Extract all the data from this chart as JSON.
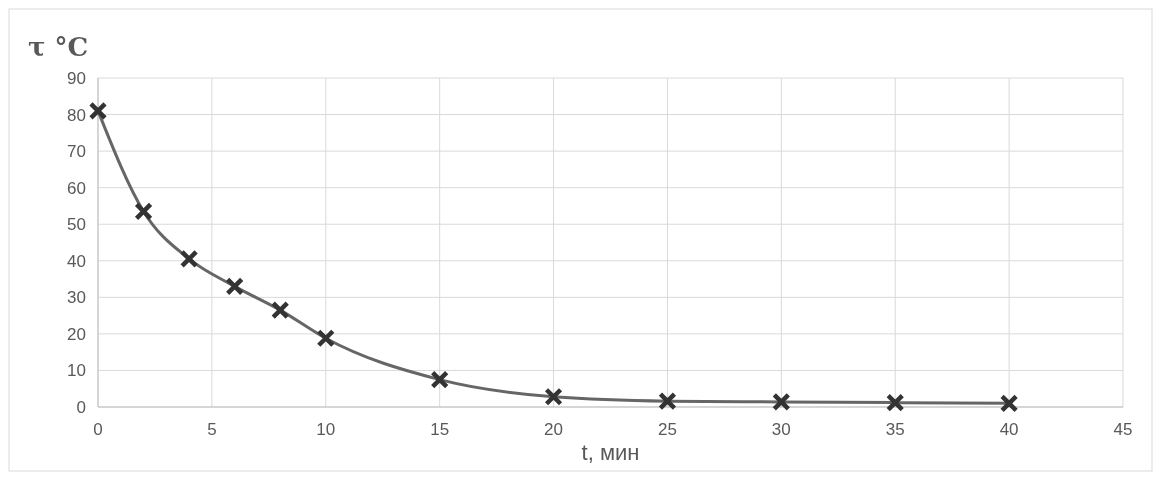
{
  "chart_data": {
    "type": "line",
    "xlabel": "t, мин",
    "ylabel": "τ °C",
    "x": [
      0,
      2,
      4,
      6,
      8,
      10,
      15,
      20,
      25,
      30,
      35,
      40
    ],
    "series": [
      {
        "color": "#666666",
        "values": [
          81,
          53.5,
          40.5,
          33,
          26.5,
          18.8,
          7.5,
          2.8,
          1.6,
          1.4,
          1.2,
          1
        ]
      }
    ],
    "xlim": [
      0,
      45
    ],
    "xticks": [
      0,
      5,
      10,
      15,
      20,
      25,
      30,
      35,
      40,
      45
    ],
    "ylim": [
      0,
      90
    ],
    "yticks": [
      0,
      10,
      20,
      30,
      40,
      50,
      60,
      70,
      80,
      90
    ],
    "grid": true,
    "marker": "cross",
    "line_style": "solid"
  }
}
